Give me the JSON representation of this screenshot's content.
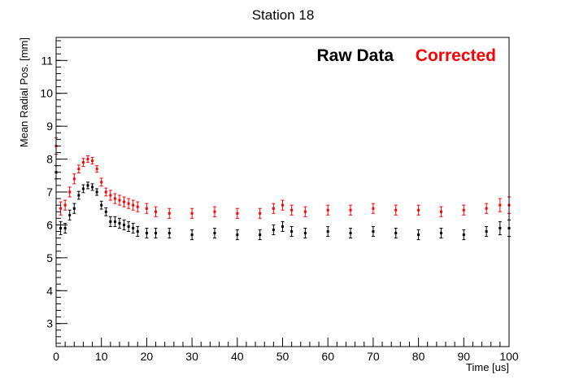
{
  "chart_data": {
    "type": "scatter",
    "title": "Station 18",
    "xlabel": "Time [us]",
    "ylabel": "Mean Radial Pos. [mm]",
    "xlim": [
      0,
      100
    ],
    "ylim": [
      2.3,
      11.7
    ],
    "x_ticks": [
      "0",
      "10",
      "20",
      "30",
      "40",
      "50",
      "60",
      "70",
      "80",
      "90",
      "100"
    ],
    "y_ticks": [
      "3",
      "4",
      "5",
      "6",
      "7",
      "8",
      "9",
      "10",
      "11"
    ],
    "x_tick_values": [
      0,
      10,
      20,
      30,
      40,
      50,
      60,
      70,
      80,
      90,
      100
    ],
    "y_tick_values": [
      3,
      4,
      5,
      6,
      7,
      8,
      9,
      10,
      11
    ],
    "error_bars": true,
    "legend_position": "top-right",
    "series": [
      {
        "name": "Raw Data",
        "color": "#000000",
        "x": [
          0,
          1,
          2,
          3,
          4,
          5,
          6,
          7,
          8,
          9,
          10,
          11,
          12,
          13,
          14,
          15,
          16,
          17,
          18,
          20,
          22,
          25,
          30,
          35,
          40,
          45,
          48,
          50,
          52,
          55,
          60,
          65,
          70,
          75,
          80,
          85,
          90,
          95,
          98,
          100
        ],
        "y": [
          7.6,
          5.9,
          5.9,
          6.3,
          6.5,
          6.9,
          7.1,
          7.2,
          7.15,
          7.0,
          6.6,
          6.4,
          6.1,
          6.1,
          6.05,
          6.0,
          5.95,
          5.9,
          5.8,
          5.75,
          5.75,
          5.75,
          5.7,
          5.75,
          5.7,
          5.7,
          5.85,
          5.95,
          5.8,
          5.75,
          5.8,
          5.75,
          5.8,
          5.75,
          5.7,
          5.75,
          5.7,
          5.8,
          5.9,
          5.9
        ],
        "error": [
          0.2,
          0.2,
          0.15,
          0.15,
          0.15,
          0.12,
          0.12,
          0.1,
          0.1,
          0.1,
          0.12,
          0.12,
          0.15,
          0.15,
          0.15,
          0.15,
          0.15,
          0.15,
          0.15,
          0.15,
          0.15,
          0.15,
          0.15,
          0.15,
          0.15,
          0.15,
          0.15,
          0.15,
          0.15,
          0.15,
          0.15,
          0.15,
          0.15,
          0.15,
          0.15,
          0.15,
          0.15,
          0.15,
          0.2,
          0.25
        ]
      },
      {
        "name": "Corrected",
        "color": "#ff0000",
        "x": [
          0,
          1,
          2,
          3,
          4,
          5,
          6,
          7,
          8,
          9,
          10,
          11,
          12,
          13,
          14,
          15,
          16,
          17,
          18,
          20,
          22,
          25,
          30,
          35,
          40,
          45,
          48,
          50,
          52,
          55,
          60,
          65,
          70,
          75,
          80,
          85,
          90,
          95,
          98,
          100
        ],
        "y": [
          8.4,
          6.5,
          6.6,
          7.0,
          7.4,
          7.7,
          7.9,
          8.0,
          7.95,
          7.7,
          7.3,
          7.0,
          6.9,
          6.8,
          6.75,
          6.7,
          6.65,
          6.6,
          6.55,
          6.5,
          6.4,
          6.35,
          6.35,
          6.4,
          6.35,
          6.35,
          6.5,
          6.6,
          6.45,
          6.4,
          6.45,
          6.45,
          6.5,
          6.45,
          6.45,
          6.4,
          6.45,
          6.5,
          6.6,
          6.6
        ],
        "error": [
          0.25,
          0.2,
          0.15,
          0.15,
          0.15,
          0.12,
          0.12,
          0.1,
          0.1,
          0.1,
          0.12,
          0.12,
          0.15,
          0.15,
          0.15,
          0.15,
          0.15,
          0.15,
          0.15,
          0.15,
          0.15,
          0.15,
          0.15,
          0.15,
          0.15,
          0.15,
          0.15,
          0.15,
          0.15,
          0.15,
          0.15,
          0.15,
          0.15,
          0.15,
          0.15,
          0.15,
          0.15,
          0.15,
          0.2,
          0.25
        ]
      }
    ]
  }
}
